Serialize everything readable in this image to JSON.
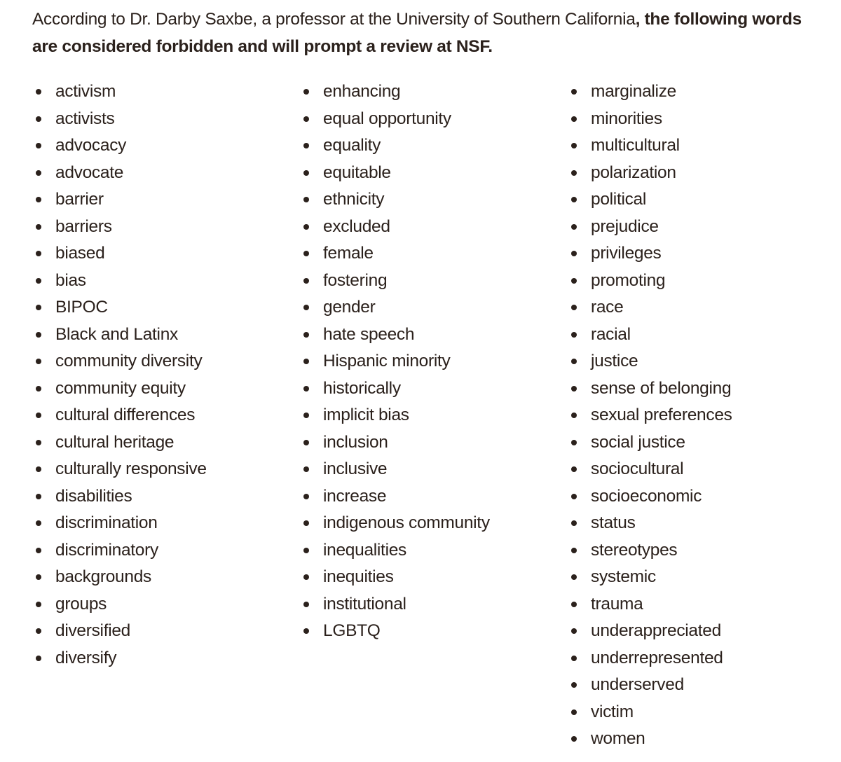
{
  "intro": {
    "normal": "According to Dr. Darby Saxbe, a professor at the University of Southern California",
    "bold": ", the following words are considered forbidden and will prompt a review at NSF."
  },
  "columns": [
    [
      "activism",
      "activists",
      "advocacy",
      "advocate",
      "barrier",
      "barriers",
      "biased",
      "bias",
      "BIPOC",
      "Black and Latinx",
      "community diversity",
      "community equity",
      "cultural differences",
      "cultural heritage",
      "culturally responsive",
      "disabilities",
      "discrimination",
      "discriminatory",
      "backgrounds",
      "groups",
      "diversified",
      "diversify"
    ],
    [
      "enhancing",
      "equal opportunity",
      "equality",
      "equitable",
      "ethnicity",
      "excluded",
      "female",
      "fostering",
      "gender",
      "hate speech",
      "Hispanic minority",
      "historically",
      "implicit bias",
      "inclusion",
      "inclusive",
      "increase",
      "indigenous community",
      "inequalities",
      "inequities",
      "institutional",
      "LGBTQ"
    ],
    [
      "marginalize",
      "minorities",
      "multicultural",
      "polarization",
      "political",
      "prejudice",
      "privileges",
      "promoting",
      "race",
      "racial",
      "justice",
      "sense of belonging",
      "sexual preferences",
      "social justice",
      "sociocultural",
      "socioeconomic",
      "status",
      "stereotypes",
      "systemic",
      "trauma",
      "underappreciated",
      "underrepresented",
      "underserved",
      "victim",
      "women"
    ]
  ],
  "colors": {
    "text": "#2b211c",
    "background": "#ffffff"
  }
}
